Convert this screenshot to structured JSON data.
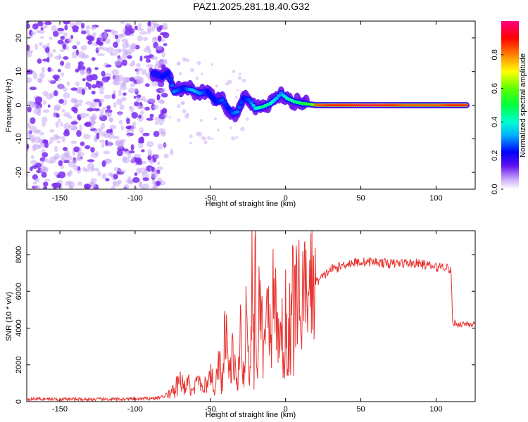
{
  "title": "PAZ1.2025.281.18.40.G32",
  "colors": {
    "snr_line": "#e8332f",
    "frame": "#000000",
    "cold_scatter": "#7a2cf0"
  },
  "chart_data": [
    {
      "type": "heatmap",
      "name": "spectrogram",
      "xlabel": "Height of straight line (km)",
      "ylabel": "Frequency (Hz)",
      "xlim": [
        -172,
        126
      ],
      "ylim": [
        -25,
        25
      ],
      "xticks": [
        -150,
        -100,
        -50,
        0,
        50,
        100
      ],
      "yticks": [
        -20,
        -10,
        0,
        10,
        20
      ],
      "colorbar": {
        "label": "Normalized spectral amplitude",
        "range": [
          0,
          1
        ],
        "ticks": [
          "0.0",
          "0.2",
          "0.4",
          "0.6",
          "0.8"
        ],
        "tick_values": [
          0,
          0.2,
          0.4,
          0.6,
          0.8
        ]
      },
      "noise_region": {
        "x_from": -172,
        "x_to": -80,
        "y_range": [
          -25,
          25
        ],
        "amplitude": 0.1
      },
      "ridge": [
        {
          "x": -88,
          "y": 9.5,
          "a": 0.25
        },
        {
          "x": -82,
          "y": 8.5,
          "a": 0.3
        },
        {
          "x": -78,
          "y": 9.5,
          "a": 0.3
        },
        {
          "x": -74,
          "y": 4.0,
          "a": 0.4
        },
        {
          "x": -68,
          "y": 5.0,
          "a": 0.3
        },
        {
          "x": -62,
          "y": 4.5,
          "a": 0.45
        },
        {
          "x": -57,
          "y": 3.5,
          "a": 0.4
        },
        {
          "x": -52,
          "y": 4.0,
          "a": 0.3
        },
        {
          "x": -46,
          "y": 1.0,
          "a": 0.3
        },
        {
          "x": -42,
          "y": 1.5,
          "a": 0.35
        },
        {
          "x": -38,
          "y": -1.0,
          "a": 0.3
        },
        {
          "x": -35,
          "y": -2.5,
          "a": 0.35
        },
        {
          "x": -32,
          "y": -2.0,
          "a": 0.4
        },
        {
          "x": -28,
          "y": 2.0,
          "a": 0.3
        },
        {
          "x": -24,
          "y": 1.5,
          "a": 0.35
        },
        {
          "x": -20,
          "y": -1.0,
          "a": 0.5
        },
        {
          "x": -15,
          "y": -0.5,
          "a": 0.6
        },
        {
          "x": -10,
          "y": 0.5,
          "a": 0.55
        },
        {
          "x": -6,
          "y": 2.0,
          "a": 0.45
        },
        {
          "x": -3,
          "y": 3.5,
          "a": 0.4
        },
        {
          "x": 1,
          "y": 2.0,
          "a": 0.55
        },
        {
          "x": 6,
          "y": 1.0,
          "a": 0.6
        },
        {
          "x": 11,
          "y": 0.5,
          "a": 0.65
        },
        {
          "x": 15,
          "y": 0.3,
          "a": 0.7
        },
        {
          "x": 20,
          "y": 0.0,
          "a": 0.85
        },
        {
          "x": 30,
          "y": 0.0,
          "a": 0.9
        },
        {
          "x": 40,
          "y": 0.0,
          "a": 0.9
        },
        {
          "x": 50,
          "y": 0.0,
          "a": 0.95
        },
        {
          "x": 60,
          "y": 0.0,
          "a": 0.95
        },
        {
          "x": 70,
          "y": 0.0,
          "a": 0.9
        },
        {
          "x": 80,
          "y": 0.0,
          "a": 0.85
        },
        {
          "x": 90,
          "y": 0.0,
          "a": 0.85
        },
        {
          "x": 100,
          "y": 0.0,
          "a": 0.85
        },
        {
          "x": 110,
          "y": 0.0,
          "a": 0.9
        },
        {
          "x": 120,
          "y": 0.0,
          "a": 0.9
        }
      ]
    },
    {
      "type": "line",
      "name": "snr",
      "xlabel": "Height of straight line (km)",
      "ylabel": "SNR (10 * v/v)",
      "xlim": [
        -172,
        126
      ],
      "ylim": [
        0,
        9300
      ],
      "xticks": [
        -150,
        -100,
        -50,
        0,
        50,
        100
      ],
      "yticks": [
        0,
        2000,
        4000,
        6000,
        8000
      ],
      "series": [
        {
          "name": "SNR",
          "x": [
            -172,
            -150,
            -130,
            -110,
            -95,
            -85,
            -78,
            -73,
            -70,
            -68,
            -65,
            -62,
            -58,
            -55,
            -50,
            -47,
            -44,
            -42,
            -40,
            -37,
            -35,
            -32,
            -30,
            -28,
            -26,
            -24,
            -22,
            -21,
            -20,
            -19,
            -17,
            -15,
            -12,
            -10,
            -8,
            -5,
            -3,
            -1,
            0,
            1,
            3,
            6,
            10,
            15,
            20,
            25,
            30,
            35,
            40,
            50,
            60,
            70,
            80,
            90,
            100,
            105,
            109,
            110,
            111,
            115,
            120,
            126
          ],
          "y": [
            150,
            130,
            120,
            130,
            150,
            200,
            350,
            700,
            1800,
            600,
            1100,
            400,
            1300,
            800,
            1700,
            600,
            2300,
            900,
            4000,
            1400,
            2700,
            1000,
            3500,
            1600,
            6000,
            1200,
            8000,
            1800,
            9200,
            1500,
            7000,
            2500,
            7800,
            3000,
            6500,
            3800,
            5000,
            1500,
            8400,
            1000,
            5500,
            6000,
            5600,
            6200,
            6500,
            6800,
            7200,
            7300,
            7500,
            7600,
            7600,
            7500,
            7550,
            7500,
            7300,
            7400,
            7200,
            7000,
            4300,
            4200,
            4250,
            4200
          ]
        }
      ]
    }
  ]
}
